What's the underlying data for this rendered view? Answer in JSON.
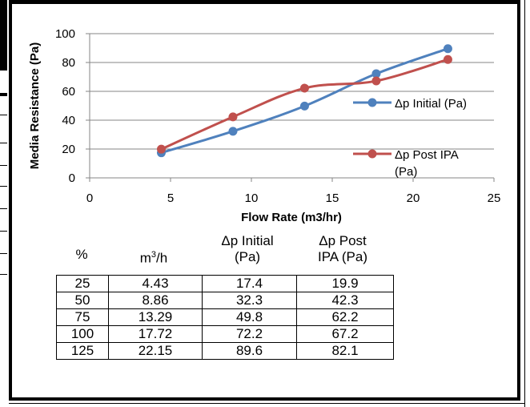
{
  "chart_data": {
    "type": "line",
    "xlabel": "Flow Rate (m3/hr)",
    "ylabel": "Media Resistance (Pa)",
    "xlim": [
      0,
      25
    ],
    "ylim": [
      0,
      100
    ],
    "x_ticks": [
      "0",
      "5",
      "10",
      "15",
      "20",
      "25"
    ],
    "y_ticks": [
      "0",
      "20",
      "40",
      "60",
      "80",
      "100"
    ],
    "grid": "horizontal",
    "legend_position": "right",
    "series": [
      {
        "name": "Δp Initial (Pa)",
        "color": "#4f81bd",
        "x": [
          4.43,
          8.86,
          13.29,
          17.72,
          22.15
        ],
        "y": [
          17.4,
          32.3,
          49.8,
          72.2,
          89.6
        ]
      },
      {
        "name": "Δp Post IPA (Pa)",
        "color": "#c0504d",
        "x": [
          4.43,
          8.86,
          13.29,
          17.72,
          22.15
        ],
        "y": [
          19.9,
          42.3,
          62.2,
          67.2,
          82.1
        ]
      }
    ]
  },
  "legend": {
    "initial_label": "Δp Initial (Pa)",
    "post_label_line1": "Δp Post IPA",
    "post_label_line2": "(Pa)"
  },
  "table": {
    "header": {
      "pct": "%",
      "flow_base": "m",
      "flow_sup": "3",
      "flow_tail": "/h",
      "initial_line1": "Δp Initial",
      "initial_line2": "(Pa)",
      "post_line1": "Δp Post",
      "post_line2": "IPA (Pa)"
    },
    "rows": [
      [
        "25",
        "4.43",
        "17.4",
        "19.9"
      ],
      [
        "50",
        "8.86",
        "32.3",
        "42.3"
      ],
      [
        "75",
        "13.29",
        "49.8",
        "62.2"
      ],
      [
        "100",
        "17.72",
        "72.2",
        "67.2"
      ],
      [
        "125",
        "22.15",
        "89.6",
        "82.1"
      ]
    ]
  }
}
